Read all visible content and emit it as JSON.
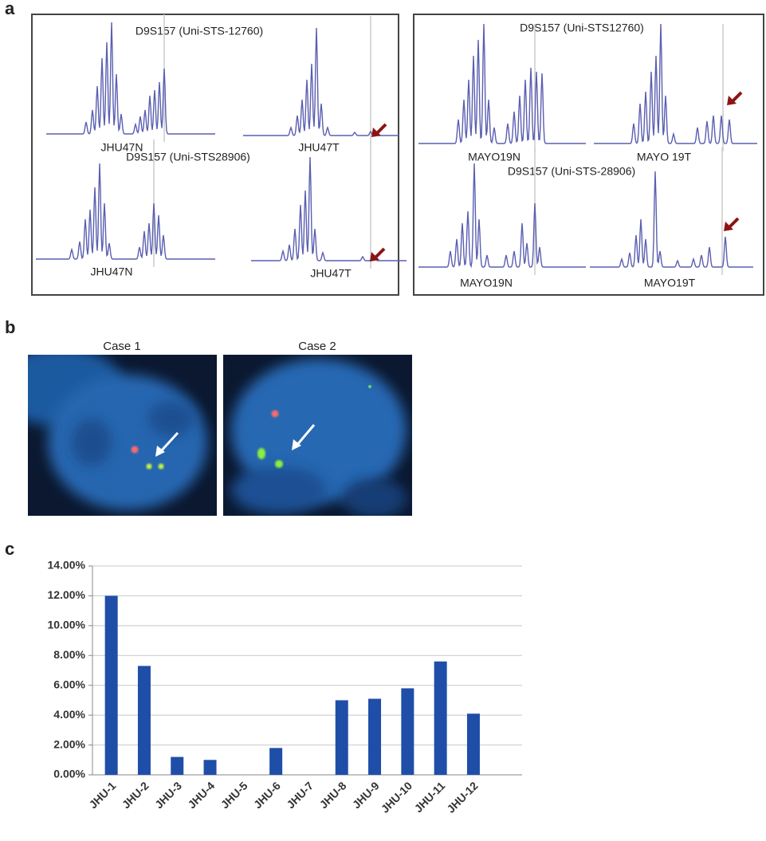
{
  "panel_labels": {
    "a": "a",
    "b": "b",
    "c": "c"
  },
  "panel_a": {
    "left": {
      "top_title": "D9S157 (Uni-STS-12760)",
      "bottom_title": "D9S157 (Uni-STS28906)",
      "labels": [
        "JHU47N",
        "JHU47T",
        "JHU47N",
        "JHU47T"
      ]
    },
    "right": {
      "top_title": "D9S157 (Uni-STS12760)",
      "bottom_title": "D9S157 (Uni-STS-28906)",
      "labels": [
        "MAYO19N",
        "MAYO 19T",
        "MAYO19N",
        "MAYO19T"
      ]
    }
  },
  "panel_b": {
    "cases": [
      "Case 1",
      "Case 2"
    ]
  },
  "chart_data": {
    "type": "bar",
    "categories": [
      "JHU-1",
      "JHU-2",
      "JHU-3",
      "JHU-4",
      "JHU-5",
      "JHU-6",
      "JHU-7",
      "JHU-8",
      "JHU-9",
      "JHU-10",
      "JHU-11",
      "JHU-12"
    ],
    "values": [
      12,
      7.3,
      1.2,
      1.0,
      0,
      1.8,
      0,
      5.0,
      5.1,
      5.8,
      7.6,
      4.1
    ],
    "color": "#1f4ea8",
    "ylim": [
      0,
      14
    ],
    "yticks": [
      {
        "value": 0,
        "label": "0.00%"
      },
      {
        "value": 2,
        "label": "2.00%"
      },
      {
        "value": 4,
        "label": "4.00%"
      },
      {
        "value": 6,
        "label": "6.00%"
      },
      {
        "value": 8,
        "label": "8.00%"
      },
      {
        "value": 10,
        "label": "10.00%"
      },
      {
        "value": 12,
        "label": "12.00%"
      },
      {
        "value": 14,
        "label": "14.00%"
      }
    ],
    "grid": true
  }
}
